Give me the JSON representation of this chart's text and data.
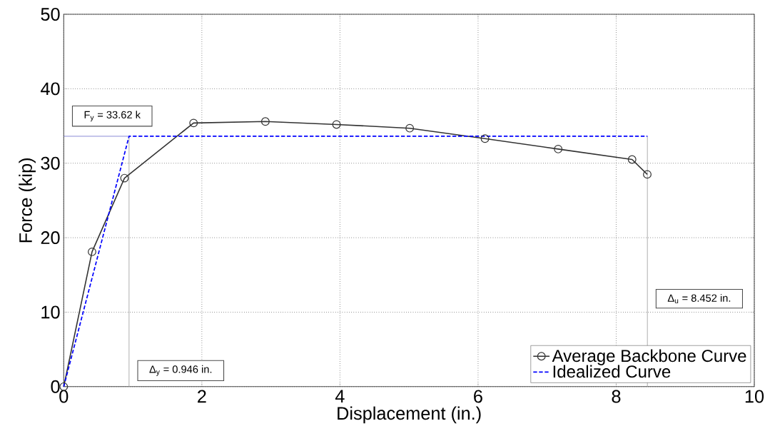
{
  "chart_data": {
    "type": "line",
    "xlabel": "Displacement (in.)",
    "ylabel": "Force (kip)",
    "xlim": [
      0,
      10
    ],
    "ylim": [
      0,
      50
    ],
    "xticks": [
      0,
      2,
      4,
      6,
      8,
      10
    ],
    "yticks": [
      0,
      10,
      20,
      30,
      40,
      50
    ],
    "grid": true,
    "legend": "bottom right",
    "series": [
      {
        "name": "Average Backbone Curve",
        "color": "#333333",
        "marker": "circle",
        "line_style": "solid",
        "x": [
          0,
          0.41,
          0.88,
          1.88,
          2.92,
          3.95,
          5.01,
          6.1,
          7.16,
          8.23,
          8.45
        ],
        "values": [
          0,
          18.1,
          28.0,
          35.4,
          35.6,
          35.2,
          34.7,
          33.3,
          31.9,
          30.5,
          28.5
        ]
      },
      {
        "name": "Idealized Curve",
        "color": "#0000ff",
        "marker": "none",
        "line_style": "dashed",
        "x": [
          0,
          0.946,
          8.452
        ],
        "values": [
          0,
          33.62,
          33.62
        ]
      }
    ],
    "ref_lines": [
      {
        "axis": "y",
        "value": 33.62,
        "label": "F$_{y}$ = 33.62 k",
        "color": "#5050c0"
      },
      {
        "axis": "x",
        "value": 0.946,
        "label": "Δ$_{y}$ = 0.946 in.",
        "color": "#999999"
      },
      {
        "axis": "x",
        "value": 8.452,
        "label": "Δ$_{u}$ = 8.452 in.",
        "color": "#999999"
      }
    ]
  }
}
